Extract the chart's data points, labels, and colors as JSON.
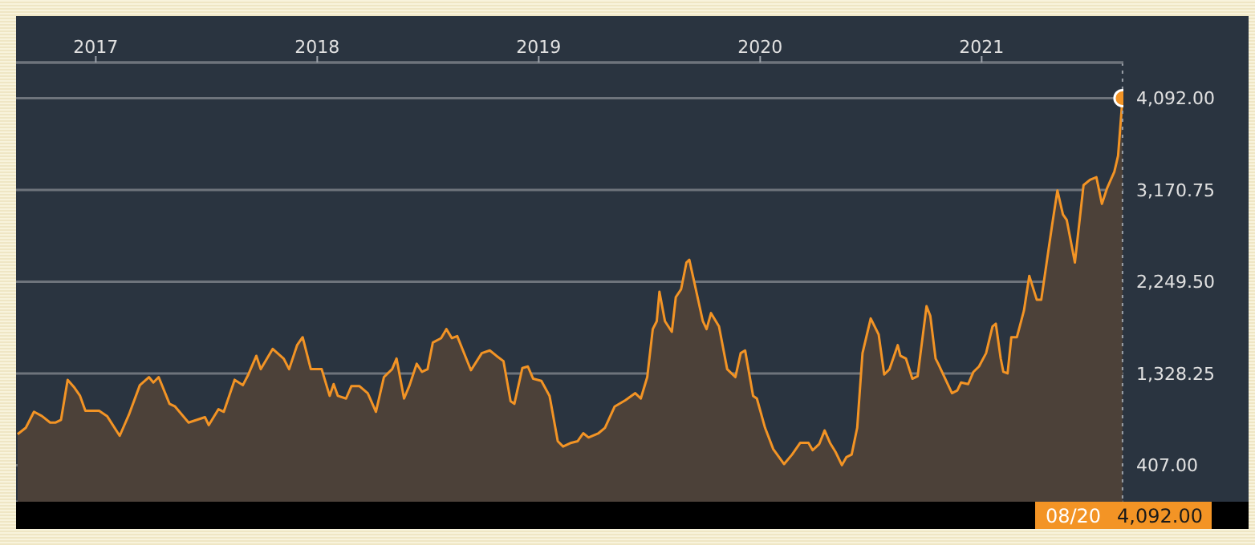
{
  "chart_data": {
    "type": "area",
    "color": "#f39425",
    "x": [
      2016.647,
      2016.684,
      2016.721,
      2016.757,
      2016.794,
      2016.819,
      2016.843,
      2016.873,
      2016.904,
      2016.929,
      2016.953,
      2017.015,
      2017.051,
      2017.108,
      2017.15,
      2017.199,
      2017.24,
      2017.26,
      2017.284,
      2017.333,
      2017.358,
      2017.419,
      2017.493,
      2017.51,
      2017.554,
      2017.578,
      2017.627,
      2017.664,
      2017.689,
      2017.725,
      2017.745,
      2017.799,
      2017.848,
      2017.873,
      2017.909,
      2017.934,
      2017.971,
      2018.02,
      2018.056,
      2018.074,
      2018.093,
      2018.13,
      2018.154,
      2018.191,
      2018.228,
      2018.265,
      2018.301,
      2018.338,
      2018.358,
      2018.392,
      2018.417,
      2018.449,
      2018.473,
      2018.498,
      2018.522,
      2018.559,
      2018.583,
      2018.608,
      2018.632,
      2018.694,
      2018.743,
      2018.779,
      2018.809,
      2018.841,
      2018.873,
      2018.89,
      2018.926,
      2018.951,
      2018.975,
      2019.012,
      2019.049,
      2019.086,
      2019.11,
      2019.147,
      2019.176,
      2019.201,
      2019.225,
      2019.27,
      2019.299,
      2019.343,
      2019.392,
      2019.436,
      2019.461,
      2019.49,
      2019.515,
      2019.533,
      2019.545,
      2019.57,
      2019.601,
      2019.619,
      2019.643,
      2019.667,
      2019.68,
      2019.704,
      2019.741,
      2019.758,
      2019.778,
      2019.814,
      2019.851,
      2019.888,
      2019.912,
      2019.932,
      2019.968,
      2019.985,
      2020.022,
      2020.059,
      2020.108,
      2020.144,
      2020.181,
      2020.218,
      2020.237,
      2020.267,
      2020.291,
      2020.315,
      2020.34,
      2020.369,
      2020.389,
      2020.413,
      2020.438,
      2020.462,
      2020.499,
      2020.535,
      2020.56,
      2020.584,
      2020.621,
      2020.633,
      2020.658,
      2020.687,
      2020.711,
      2020.751,
      2020.768,
      2020.792,
      2020.804,
      2020.866,
      2020.89,
      2020.907,
      2020.939,
      2020.963,
      2020.988,
      2021.02,
      2021.049,
      2021.064,
      2021.086,
      2021.098,
      2021.117,
      2021.134,
      2021.159,
      2021.191,
      2021.215,
      2021.249,
      2021.269,
      2021.318,
      2021.342,
      2021.367,
      2021.384,
      2021.421,
      2021.46,
      2021.489,
      2021.518,
      2021.543,
      2021.567,
      2021.599,
      2021.616,
      2021.636
    ],
    "values": [
      718,
      782,
      943,
      900,
      835,
      835,
      862,
      1264,
      1184,
      1103,
      953,
      953,
      900,
      702,
      916,
      1210,
      1291,
      1237,
      1291,
      1023,
      996,
      835,
      889,
      809,
      969,
      943,
      1264,
      1210,
      1318,
      1505,
      1371,
      1575,
      1478,
      1371,
      1612,
      1692,
      1371,
      1371,
      1103,
      1221,
      1103,
      1076,
      1200,
      1200,
      1130,
      943,
      1291,
      1371,
      1478,
      1076,
      1210,
      1425,
      1344,
      1371,
      1639,
      1682,
      1773,
      1682,
      1703,
      1360,
      1532,
      1559,
      1505,
      1451,
      1050,
      1023,
      1382,
      1398,
      1275,
      1253,
      1103,
      648,
      594,
      632,
      648,
      728,
      685,
      728,
      782,
      996,
      1060,
      1130,
      1076,
      1291,
      1773,
      1853,
      2148,
      1853,
      1746,
      2094,
      2174,
      2442,
      2469,
      2228,
      1853,
      1773,
      1934,
      1800,
      1371,
      1291,
      1532,
      1559,
      1103,
      1076,
      782,
      568,
      418,
      514,
      632,
      632,
      557,
      621,
      755,
      632,
      541,
      407,
      487,
      514,
      782,
      1532,
      1880,
      1719,
      1318,
      1371,
      1612,
      1505,
      1478,
      1275,
      1301,
      2003,
      1907,
      1478,
      1425,
      1130,
      1157,
      1237,
      1221,
      1344,
      1398,
      1532,
      1800,
      1827,
      1478,
      1344,
      1328,
      1692,
      1692,
      1960,
      2308,
      2067,
      2067,
      2817,
      3165,
      2924,
      2870,
      2442,
      3219,
      3272,
      3299,
      3031,
      3192,
      3353,
      3514,
      4092
    ],
    "xlim": [
      2016.64,
      2021.64
    ],
    "xticks": [
      2017,
      2018,
      2019,
      2020,
      2021
    ],
    "ylim": [
      40,
      4450
    ],
    "yticks": [
      {
        "value": 407,
        "label": "407.00"
      },
      {
        "value": 1328.25,
        "label": "1,328.25"
      },
      {
        "value": 2249.5,
        "label": "2,249.50"
      },
      {
        "value": 3170.75,
        "label": "3,170.75"
      },
      {
        "value": 4092,
        "label": "4,092.00"
      }
    ],
    "grid": "y",
    "marker": "none",
    "line_style": "solid",
    "ref_lines": [
      {
        "axis": "x",
        "value": 2021.636,
        "color": "#9aa0a8",
        "line_style": "dotted"
      }
    ],
    "annotations": [
      "08/20",
      "4,092.00"
    ]
  }
}
